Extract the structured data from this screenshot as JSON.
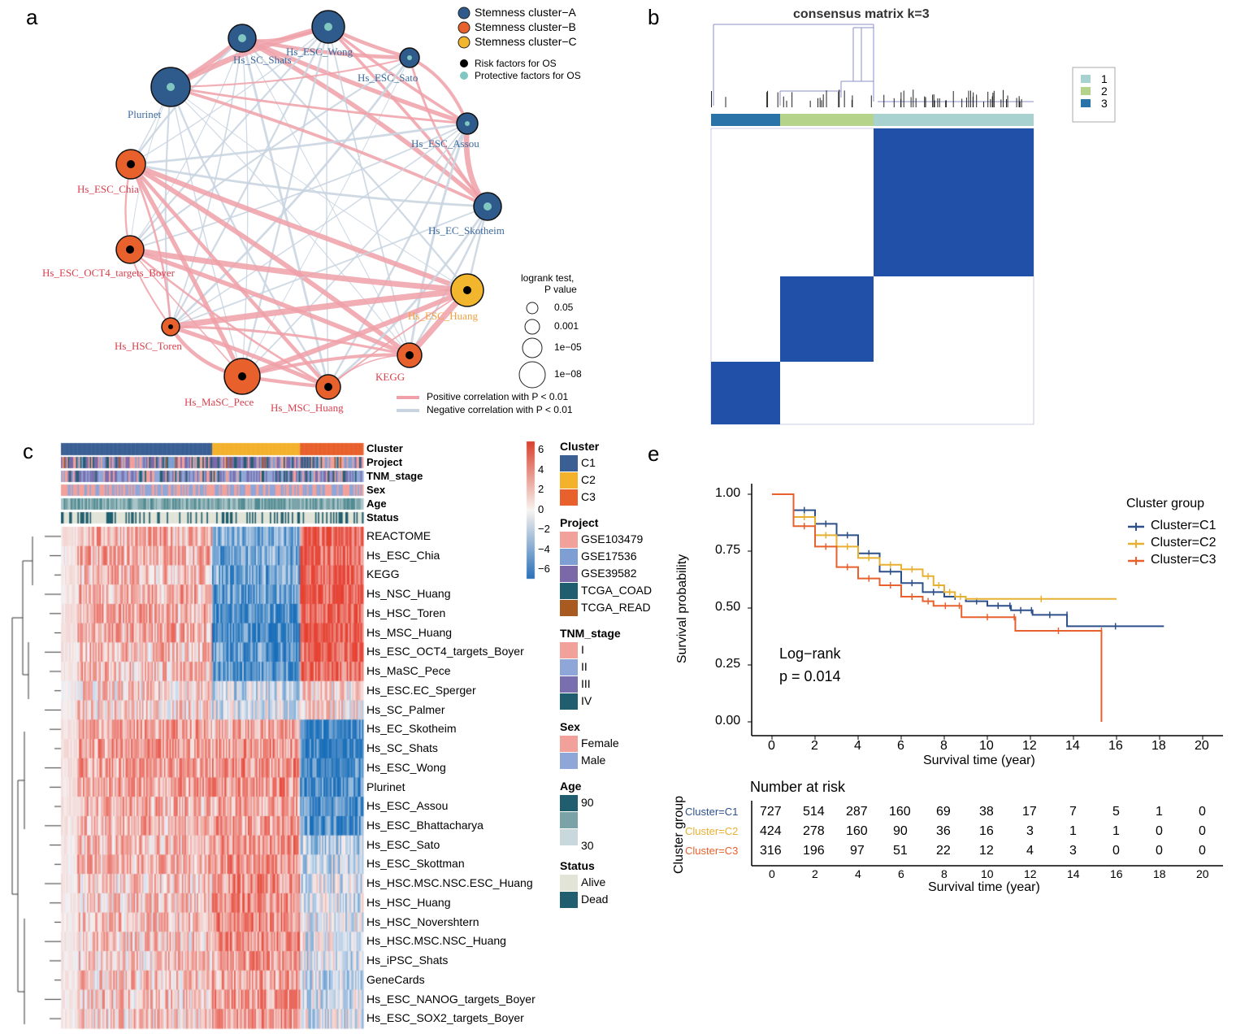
{
  "panels": {
    "a": "a",
    "b": "b",
    "c": "c",
    "e": "e"
  },
  "network": {
    "legend_clusters": [
      {
        "label": "Stemness cluster−A",
        "color": "#2e5a8c"
      },
      {
        "label": "Stemness cluster−B",
        "color": "#e8602c"
      },
      {
        "label": "Stemness cluster−C",
        "color": "#f2b52e"
      }
    ],
    "legend_factors": [
      {
        "label": "Risk factors for OS",
        "color": "#000000"
      },
      {
        "label": "Protective factors for OS",
        "color": "#7fc7c0"
      }
    ],
    "size_legend_title": [
      "logrank test,",
      "P value"
    ],
    "size_legend": [
      "0.05",
      "0.001",
      "1e−05",
      "1e−08"
    ],
    "edge_legend": [
      {
        "label": "Positive correlation with P < 0.01",
        "color": "#f0a0a8"
      },
      {
        "label": "Negative correlation with P < 0.01",
        "color": "#c8d4e0"
      }
    ],
    "nodes": [
      {
        "name": "Hs_SC_Shats",
        "cluster": "A",
        "factor": "protective"
      },
      {
        "name": "Hs_ESC_Wong",
        "cluster": "A",
        "factor": "protective"
      },
      {
        "name": "Hs_ESC_Sato",
        "cluster": "A",
        "factor": "protective"
      },
      {
        "name": "Plurinet",
        "cluster": "A",
        "factor": "protective"
      },
      {
        "name": "Hs_ESC_Assou",
        "cluster": "A",
        "factor": "protective"
      },
      {
        "name": "Hs_ESC_Chia",
        "cluster": "B",
        "factor": "risk"
      },
      {
        "name": "Hs_EC_Skotheim",
        "cluster": "A",
        "factor": "protective"
      },
      {
        "name": "Hs_ESC_OCT4_targets_Boyer",
        "cluster": "B",
        "factor": "risk"
      },
      {
        "name": "Hs_ESC_Huang",
        "cluster": "C",
        "factor": "risk"
      },
      {
        "name": "Hs_HSC_Toren",
        "cluster": "B",
        "factor": "risk"
      },
      {
        "name": "Hs_MaSC_Pece",
        "cluster": "B",
        "factor": "risk"
      },
      {
        "name": "Hs_MSC_Huang",
        "cluster": "B",
        "factor": "risk"
      },
      {
        "name": "KEGG",
        "cluster": "B",
        "factor": "risk"
      }
    ]
  },
  "consensus": {
    "title": "consensus matrix k=3",
    "legend": [
      {
        "label": "1",
        "color": "#a8d2cf"
      },
      {
        "label": "2",
        "color": "#b5d38b"
      },
      {
        "label": "3",
        "color": "#2a73a8"
      }
    ],
    "fill_color": "#2150a8"
  },
  "heatmap": {
    "annotation_labels": [
      "Cluster",
      "Project",
      "TNM_stage",
      "Sex",
      "Age",
      "Status"
    ],
    "rows": [
      "REACTOME",
      "Hs_ESC_Chia",
      "KEGG",
      "Hs_NSC_Huang",
      "Hs_HSC_Toren",
      "Hs_MSC_Huang",
      "Hs_ESC_OCT4_targets_Boyer",
      "Hs_MaSC_Pece",
      "Hs_ESC.EC_Sperger",
      "Hs_SC_Palmer",
      "Hs_EC_Skotheim",
      "Hs_SC_Shats",
      "Hs_ESC_Wong",
      "Plurinet",
      "Hs_ESC_Assou",
      "Hs_ESC_Bhattacharya",
      "Hs_ESC_Sato",
      "Hs_ESC_Skottman",
      "Hs_HSC.MSC.NSC.ESC_Huang",
      "Hs_HSC_Huang",
      "Hs_HSC_Novershtern",
      "Hs_HSC.MSC.NSC_Huang",
      "Hs_iPSC_Shats",
      "GeneCards",
      "Hs_ESC_NANOG_targets_Boyer",
      "Hs_ESC_SOX2_targets_Boyer"
    ],
    "scale_ticks": [
      "6",
      "4",
      "2",
      "0",
      "−2",
      "−4",
      "−6"
    ],
    "legends": [
      {
        "title": "Cluster",
        "items": [
          {
            "label": "C1",
            "color": "#3a5f94"
          },
          {
            "label": "C2",
            "color": "#f3b12c"
          },
          {
            "label": "C3",
            "color": "#e8602c"
          }
        ]
      },
      {
        "title": "Project",
        "items": [
          {
            "label": "GSE103479",
            "color": "#f2a09a"
          },
          {
            "label": "GSE17536",
            "color": "#7e9fd4"
          },
          {
            "label": "GSE39582",
            "color": "#7a68a8"
          },
          {
            "label": "TCGA_COAD",
            "color": "#1f5e6e"
          },
          {
            "label": "TCGA_READ",
            "color": "#a85a20"
          }
        ]
      },
      {
        "title": "TNM_stage",
        "items": [
          {
            "label": "I",
            "color": "#f2a09a"
          },
          {
            "label": "II",
            "color": "#8fa6d8"
          },
          {
            "label": "III",
            "color": "#7a6fae"
          },
          {
            "label": "IV",
            "color": "#1f5e6e"
          }
        ]
      },
      {
        "title": "Sex",
        "items": [
          {
            "label": "Female",
            "color": "#f2a09a"
          },
          {
            "label": "Male",
            "color": "#8fa6d8"
          }
        ]
      },
      {
        "title": "Age",
        "items": [
          {
            "label": "90",
            "color": "#1f5e6e"
          },
          {
            "label": "",
            "color": "#7aa3a8"
          },
          {
            "label": "30",
            "color": "#c8d8dc"
          }
        ]
      },
      {
        "title": "Status",
        "items": [
          {
            "label": "Alive",
            "color": "#e2e4d8"
          },
          {
            "label": "Dead",
            "color": "#1f5e6e"
          }
        ]
      }
    ]
  },
  "chart_data": {
    "type": "line",
    "title": "",
    "xlabel": "Survival time (year)",
    "ylabel": "Survival probability",
    "xlim": [
      0,
      20
    ],
    "ylim": [
      0,
      1
    ],
    "xticks": [
      "0",
      "2",
      "4",
      "6",
      "8",
      "10",
      "12",
      "14",
      "16",
      "18",
      "20"
    ],
    "yticks": [
      "0.00",
      "0.25",
      "0.50",
      "0.75",
      "1.00"
    ],
    "legend_title": "Cluster group",
    "legend_position": "right",
    "annotation": [
      "Log−rank",
      "p = 0.014"
    ],
    "series": [
      {
        "name": "Cluster=C1",
        "color": "#2d4f8a",
        "x": [
          0,
          1,
          2,
          3,
          4,
          5,
          6,
          7,
          8,
          9,
          10,
          11,
          11.1,
          12,
          12.1,
          13.7,
          13.7,
          18.2
        ],
        "y": [
          1,
          0.93,
          0.87,
          0.82,
          0.74,
          0.66,
          0.61,
          0.57,
          0.55,
          0.53,
          0.51,
          0.51,
          0.49,
          0.49,
          0.47,
          0.47,
          0.42,
          0.42
        ]
      },
      {
        "name": "Cluster=C2",
        "color": "#e8b030",
        "x": [
          0,
          1,
          2,
          3,
          4,
          5,
          6,
          7,
          7.5,
          8,
          8.5,
          9,
          16
        ],
        "y": [
          1,
          0.9,
          0.82,
          0.77,
          0.72,
          0.69,
          0.67,
          0.64,
          0.6,
          0.57,
          0.55,
          0.54,
          0.54
        ]
      },
      {
        "name": "Cluster=C3",
        "color": "#e8602c",
        "x": [
          0,
          1,
          2,
          3,
          4,
          5,
          6,
          7,
          7.5,
          8.6,
          8.8,
          11.2,
          11.3,
          15.3,
          15.3
        ],
        "y": [
          1,
          0.86,
          0.77,
          0.68,
          0.63,
          0.6,
          0.55,
          0.53,
          0.51,
          0.51,
          0.46,
          0.46,
          0.4,
          0.4,
          0
        ]
      }
    ],
    "risk_table": {
      "title": "Number at risk",
      "ylabel": "Cluster group",
      "xlabel": "Survival time (year)",
      "rows": [
        {
          "name": "Cluster=C1",
          "values": [
            "727",
            "514",
            "287",
            "160",
            "69",
            "38",
            "17",
            "7",
            "5",
            "1",
            "0"
          ]
        },
        {
          "name": "Cluster=C2",
          "values": [
            "424",
            "278",
            "160",
            "90",
            "36",
            "16",
            "3",
            "1",
            "1",
            "0",
            "0"
          ]
        },
        {
          "name": "Cluster=C3",
          "values": [
            "316",
            "196",
            "97",
            "51",
            "22",
            "12",
            "4",
            "3",
            "0",
            "0",
            "0"
          ]
        }
      ]
    }
  }
}
